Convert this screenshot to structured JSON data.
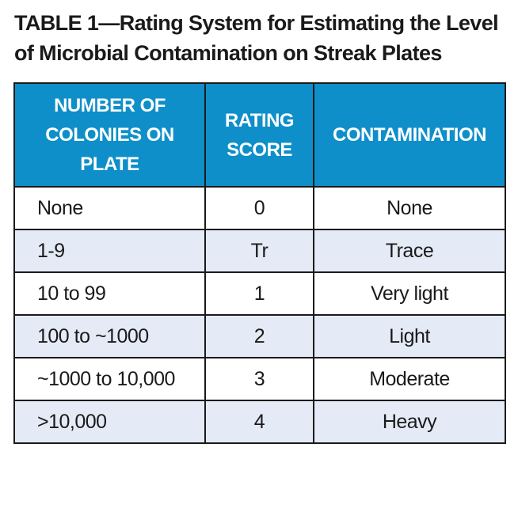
{
  "title": {
    "line1": "TABLE 1—Rating System for Estimating the Level",
    "line2": "of Microbial Contamination on Streak Plates"
  },
  "table": {
    "headers": {
      "colonies": "NUMBER OF COLONIES ON PLATE",
      "score": "RATING SCORE",
      "contamination": "CONTAMINATION"
    },
    "rows": [
      {
        "colonies": "None",
        "score": "0",
        "contamination": "None"
      },
      {
        "colonies": "1-9",
        "score": "Tr",
        "contamination": "Trace"
      },
      {
        "colonies": "10 to 99",
        "score": "1",
        "contamination": "Very light"
      },
      {
        "colonies": "100 to ~1000",
        "score": "2",
        "contamination": "Light"
      },
      {
        "colonies": "~1000 to 10,000",
        "score": "3",
        "contamination": "Moderate"
      },
      {
        "colonies": ">10,000",
        "score": "4",
        "contamination": "Heavy"
      }
    ]
  },
  "colors": {
    "header_bg": "#0e8fc9",
    "stripe_bg": "#e4ebf6",
    "border": "#1a1a1a"
  }
}
